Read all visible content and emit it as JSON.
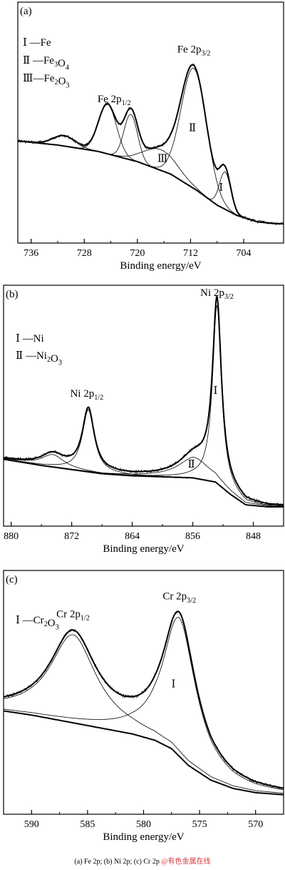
{
  "caption": "(a) Fe 2p; (b) Ni  2p; (c) Cr 2p",
  "watermark": "@有色金属在线",
  "chart_data": [
    {
      "type": "line",
      "panel_label": "(a)",
      "xlabel": "Binding energy/eV",
      "xlim": [
        738,
        698
      ],
      "x_reversed": true,
      "xticks": [
        736,
        728,
        720,
        712,
        704
      ],
      "legend": [
        "Ⅰ —Fe",
        "Ⅱ —Fe3O4",
        "Ⅲ—Fe2O3"
      ],
      "annotations": [
        {
          "text": "Fe 2p3/2",
          "x": 711.5
        },
        {
          "text": "Fe 2p1/2",
          "x": 723.5
        },
        {
          "text": "Ⅱ",
          "x": 711.5
        },
        {
          "text": "Ⅲ",
          "x": 716.0
        },
        {
          "text": "Ⅰ",
          "x": 707.2
        }
      ],
      "background": {
        "x": [
          738,
          732,
          726,
          720,
          715,
          711,
          708,
          705,
          702,
          699
        ],
        "y": [
          0.4,
          0.38,
          0.35,
          0.3,
          0.24,
          0.16,
          0.09,
          0.04,
          0.01,
          0.0
        ]
      },
      "components": [
        {
          "name": "Ⅱ",
          "center": 711.5,
          "fwhm": 4.5,
          "height": 0.58
        },
        {
          "name": "Ⅱ",
          "center": 724.5,
          "fwhm": 3.2,
          "height": 0.24
        },
        {
          "name": "Ⅱ",
          "center": 721.0,
          "fwhm": 2.4,
          "height": 0.22
        },
        {
          "name": "Ⅲ",
          "center": 716.5,
          "fwhm": 6.0,
          "height": 0.1
        },
        {
          "name": "Ⅰ",
          "center": 706.8,
          "fwhm": 2.0,
          "height": 0.18
        },
        {
          "name": "",
          "center": 731.0,
          "fwhm": 4.0,
          "height": 0.05
        }
      ]
    },
    {
      "type": "line",
      "panel_label": "(b)",
      "xlabel": "Binding energy/eV",
      "xlim": [
        881,
        844
      ],
      "x_reversed": true,
      "xticks": [
        880,
        872,
        864,
        856,
        848
      ],
      "legend": [
        "Ⅰ —Ni",
        "Ⅱ —Ni2O3"
      ],
      "annotations": [
        {
          "text": "Ni 2p3/2",
          "x": 852.8
        },
        {
          "text": "Ni 2p1/2",
          "x": 870.0
        },
        {
          "text": "Ⅰ",
          "x": 852.8
        },
        {
          "text": "Ⅱ",
          "x": 856.0
        }
      ],
      "background": {
        "x": [
          881,
          876,
          872,
          868,
          864,
          860,
          856,
          853,
          851,
          849,
          846,
          844
        ],
        "y": [
          0.23,
          0.2,
          0.18,
          0.16,
          0.15,
          0.145,
          0.14,
          0.12,
          0.06,
          0.01,
          0.0,
          0.0
        ]
      },
      "components": [
        {
          "name": "Ⅰ",
          "center": 852.8,
          "fwhm": 1.4,
          "height": 0.86
        },
        {
          "name": "",
          "center": 869.8,
          "fwhm": 1.9,
          "height": 0.3
        },
        {
          "name": "Ⅱ",
          "center": 855.8,
          "fwhm": 5.0,
          "height": 0.1
        },
        {
          "name": "",
          "center": 874.5,
          "fwhm": 3.6,
          "height": 0.06
        }
      ]
    },
    {
      "type": "line",
      "panel_label": "(c)",
      "xlabel": "Binding energy/eV",
      "xlim": [
        592.5,
        567.5
      ],
      "x_reversed": true,
      "xticks": [
        590,
        585,
        580,
        575,
        570
      ],
      "legend": [
        "Ⅰ —Cr2O3"
      ],
      "annotations": [
        {
          "text": "Cr 2p3/2",
          "x": 576.8
        },
        {
          "text": "Cr 2p1/2",
          "x": 586.3
        },
        {
          "text": "Ⅰ",
          "x": 577.2
        }
      ],
      "background": {
        "x": [
          592.5,
          590,
          587,
          584,
          581,
          579,
          577.5,
          576,
          574,
          572,
          570,
          567.5
        ],
        "y": [
          0.4,
          0.38,
          0.35,
          0.32,
          0.29,
          0.26,
          0.22,
          0.14,
          0.07,
          0.03,
          0.01,
          0.0
        ]
      },
      "components": [
        {
          "name": "Ⅰ",
          "center": 576.8,
          "fwhm": 3.6,
          "height": 0.66
        },
        {
          "name": "",
          "center": 586.3,
          "fwhm": 5.0,
          "height": 0.42
        }
      ]
    }
  ]
}
